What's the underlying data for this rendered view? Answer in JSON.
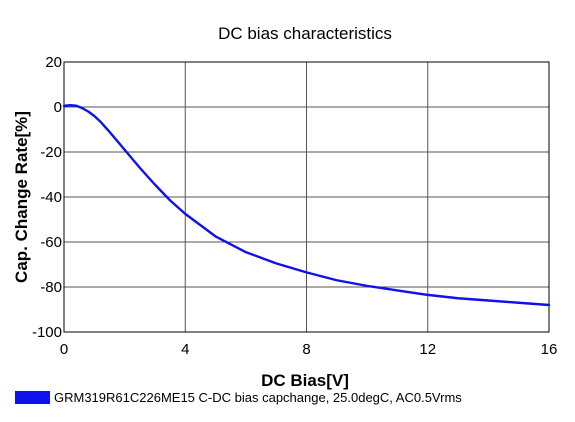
{
  "chart_data": {
    "type": "line",
    "title": "DC bias characteristics",
    "xlabel": "DC Bias[V]",
    "ylabel": "Cap. Change Rate[%]",
    "xlim": [
      0,
      16
    ],
    "ylim": [
      -100,
      20
    ],
    "x_ticks": [
      "0",
      "4",
      "8",
      "12",
      "16"
    ],
    "y_ticks": [
      "20",
      "0",
      "-20",
      "-40",
      "-60",
      "-80",
      "-100"
    ],
    "grid": true,
    "legend_position": "bottom-left",
    "series": [
      {
        "name": "GRM319R61C226ME15 C-DC bias capchange, 25.0degC, AC0.5Vrms",
        "color": "#1010ee",
        "x": [
          0,
          0.2,
          0.4,
          0.6,
          0.8,
          1.0,
          1.2,
          1.5,
          2.0,
          2.5,
          3.0,
          3.5,
          4.0,
          5.0,
          6.0,
          7.0,
          8.0,
          9.0,
          10.0,
          11.0,
          12.0,
          13.0,
          14.0,
          15.0,
          16.0
        ],
        "y": [
          0.5,
          0.8,
          0.6,
          -0.5,
          -2.0,
          -4.0,
          -6.5,
          -11.0,
          -19.0,
          -27.0,
          -34.5,
          -41.5,
          -47.5,
          -57.5,
          -64.5,
          -69.5,
          -73.5,
          -77.0,
          -79.5,
          -81.5,
          -83.5,
          -85.0,
          -86.0,
          -87.0,
          -88.0
        ]
      }
    ]
  }
}
